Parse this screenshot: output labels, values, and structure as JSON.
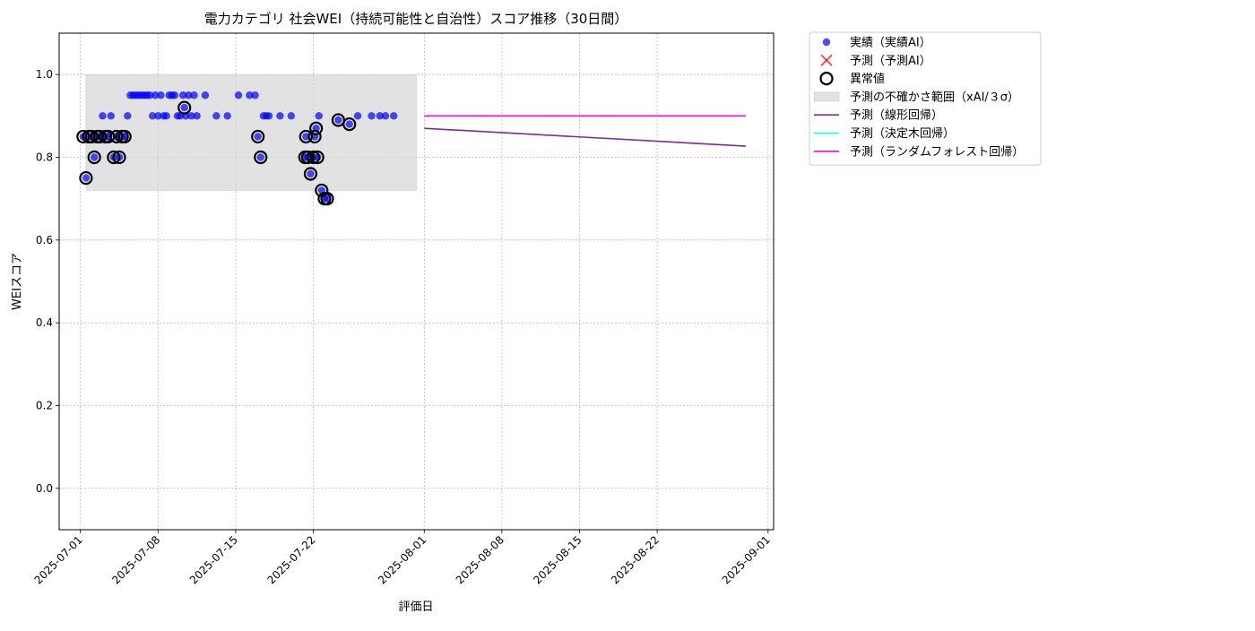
{
  "chart_data": {
    "type": "scatter",
    "title": "電力カテゴリ 社会WEI（持続可能性と自治性）スコア推移（30日間）",
    "xlabel": "評価日",
    "ylabel": "WEIスコア",
    "xlim": [
      "2025-06-29T02:00",
      "2025-09-01T12:00"
    ],
    "ylim": [
      -0.1,
      1.1
    ],
    "x_ticks": [
      "2025-07-01",
      "2025-07-08",
      "2025-07-15",
      "2025-07-22",
      "2025-08-01",
      "2025-08-08",
      "2025-08-15",
      "2025-08-22",
      "2025-09-01"
    ],
    "y_ticks": [
      "0.0",
      "0.2",
      "0.4",
      "0.6",
      "0.8",
      "1.0"
    ],
    "grid": true,
    "legend_position": "outside-right-top",
    "colors": {
      "actual": "#0000ff",
      "predicted_ai": "#ff0000",
      "anomaly": "#000000",
      "band": "#d3d3d3",
      "linear": "#7b2d8e",
      "tree": "#00ffff",
      "forest": "#ff00ff"
    },
    "legend": [
      {
        "key": "actual",
        "label": "実績（実績AI）",
        "marker": "dot"
      },
      {
        "key": "predicted_ai",
        "label": "予測（予測AI）",
        "marker": "x"
      },
      {
        "key": "anomaly",
        "label": "異常値",
        "marker": "ring"
      },
      {
        "key": "band",
        "label": "予測の不確かさ範囲（xAI/３σ）",
        "marker": "patch"
      },
      {
        "key": "linear",
        "label": "予測（線形回帰）",
        "marker": "line"
      },
      {
        "key": "tree",
        "label": "予測（決定木回帰）",
        "marker": "line"
      },
      {
        "key": "forest",
        "label": "予測（ランダムフォレスト回帰）",
        "marker": "line"
      }
    ],
    "band": {
      "x_start": "2025-07-01T12:00",
      "x_end": "2025-07-31T07:00",
      "y_low": 0.72,
      "y_high": 1.0
    },
    "actual_points": [
      [
        "2025-07-01T06:00",
        0.85
      ],
      [
        "2025-07-01T12:00",
        0.75
      ],
      [
        "2025-07-01T18:00",
        0.85
      ],
      [
        "2025-07-02T00:00",
        0.85
      ],
      [
        "2025-07-02T06:00",
        0.8
      ],
      [
        "2025-07-02T12:00",
        0.85
      ],
      [
        "2025-07-02T18:00",
        0.85
      ],
      [
        "2025-07-03T00:00",
        0.9
      ],
      [
        "2025-07-03T06:00",
        0.85
      ],
      [
        "2025-07-03T12:00",
        0.85
      ],
      [
        "2025-07-03T18:00",
        0.9
      ],
      [
        "2025-07-04T00:00",
        0.8
      ],
      [
        "2025-07-04T06:00",
        0.85
      ],
      [
        "2025-07-04T12:00",
        0.8
      ],
      [
        "2025-07-04T18:00",
        0.85
      ],
      [
        "2025-07-05T00:00",
        0.85
      ],
      [
        "2025-07-05T06:00",
        0.9
      ],
      [
        "2025-07-05T12:00",
        0.95
      ],
      [
        "2025-07-05T18:00",
        0.95
      ],
      [
        "2025-07-06T00:00",
        0.95
      ],
      [
        "2025-07-06T06:00",
        0.95
      ],
      [
        "2025-07-06T12:00",
        0.95
      ],
      [
        "2025-07-06T18:00",
        0.95
      ],
      [
        "2025-07-07T00:00",
        0.95
      ],
      [
        "2025-07-07T06:00",
        0.95
      ],
      [
        "2025-07-07T12:00",
        0.9
      ],
      [
        "2025-07-07T18:00",
        0.95
      ],
      [
        "2025-07-08T00:00",
        0.9
      ],
      [
        "2025-07-08T06:00",
        0.95
      ],
      [
        "2025-07-08T12:00",
        0.9
      ],
      [
        "2025-07-08T18:00",
        0.9
      ],
      [
        "2025-07-09T00:00",
        0.95
      ],
      [
        "2025-07-09T06:00",
        0.95
      ],
      [
        "2025-07-09T12:00",
        0.95
      ],
      [
        "2025-07-09T18:00",
        0.9
      ],
      [
        "2025-07-10T00:00",
        0.9
      ],
      [
        "2025-07-10T06:00",
        0.95
      ],
      [
        "2025-07-10T09:00",
        0.92
      ],
      [
        "2025-07-10T12:00",
        0.9
      ],
      [
        "2025-07-10T18:00",
        0.95
      ],
      [
        "2025-07-11T00:00",
        0.9
      ],
      [
        "2025-07-11T06:00",
        0.95
      ],
      [
        "2025-07-11T12:00",
        0.9
      ],
      [
        "2025-07-12T06:00",
        0.95
      ],
      [
        "2025-07-13T06:00",
        0.9
      ],
      [
        "2025-07-14T06:00",
        0.9
      ],
      [
        "2025-07-15T06:00",
        0.95
      ],
      [
        "2025-07-16T06:00",
        0.95
      ],
      [
        "2025-07-16T18:00",
        0.95
      ],
      [
        "2025-07-17T00:00",
        0.85
      ],
      [
        "2025-07-17T06:00",
        0.8
      ],
      [
        "2025-07-17T12:00",
        0.9
      ],
      [
        "2025-07-17T18:00",
        0.9
      ],
      [
        "2025-07-18T00:00",
        0.9
      ],
      [
        "2025-07-19T00:00",
        0.9
      ],
      [
        "2025-07-20T00:00",
        0.9
      ],
      [
        "2025-07-21T06:00",
        0.8
      ],
      [
        "2025-07-21T08:00",
        0.85
      ],
      [
        "2025-07-21T12:00",
        0.8
      ],
      [
        "2025-07-21T18:00",
        0.76
      ],
      [
        "2025-07-22T00:00",
        0.8
      ],
      [
        "2025-07-22T03:00",
        0.85
      ],
      [
        "2025-07-22T06:00",
        0.87
      ],
      [
        "2025-07-22T09:00",
        0.8
      ],
      [
        "2025-07-22T12:00",
        0.9
      ],
      [
        "2025-07-22T18:00",
        0.72
      ],
      [
        "2025-07-23T00:00",
        0.7
      ],
      [
        "2025-07-23T06:00",
        0.7
      ],
      [
        "2025-07-24T06:00",
        0.89
      ],
      [
        "2025-07-25T06:00",
        0.88
      ],
      [
        "2025-07-26T00:00",
        0.9
      ],
      [
        "2025-07-27T06:00",
        0.9
      ],
      [
        "2025-07-28T00:00",
        0.9
      ],
      [
        "2025-07-28T12:00",
        0.9
      ],
      [
        "2025-07-29T06:00",
        0.9
      ]
    ],
    "anomaly_points": [
      [
        "2025-07-01T06:00",
        0.85
      ],
      [
        "2025-07-01T12:00",
        0.75
      ],
      [
        "2025-07-01T18:00",
        0.85
      ],
      [
        "2025-07-02T00:00",
        0.85
      ],
      [
        "2025-07-02T06:00",
        0.8
      ],
      [
        "2025-07-02T12:00",
        0.85
      ],
      [
        "2025-07-02T18:00",
        0.85
      ],
      [
        "2025-07-03T06:00",
        0.85
      ],
      [
        "2025-07-03T12:00",
        0.85
      ],
      [
        "2025-07-04T00:00",
        0.8
      ],
      [
        "2025-07-04T06:00",
        0.85
      ],
      [
        "2025-07-04T12:00",
        0.8
      ],
      [
        "2025-07-04T18:00",
        0.85
      ],
      [
        "2025-07-05T00:00",
        0.85
      ],
      [
        "2025-07-10T09:00",
        0.92
      ],
      [
        "2025-07-17T00:00",
        0.85
      ],
      [
        "2025-07-17T06:00",
        0.8
      ],
      [
        "2025-07-21T06:00",
        0.8
      ],
      [
        "2025-07-21T08:00",
        0.85
      ],
      [
        "2025-07-21T12:00",
        0.8
      ],
      [
        "2025-07-21T18:00",
        0.76
      ],
      [
        "2025-07-22T00:00",
        0.8
      ],
      [
        "2025-07-22T03:00",
        0.85
      ],
      [
        "2025-07-22T06:00",
        0.87
      ],
      [
        "2025-07-22T09:00",
        0.8
      ],
      [
        "2025-07-22T18:00",
        0.72
      ],
      [
        "2025-07-23T00:00",
        0.7
      ],
      [
        "2025-07-23T06:00",
        0.7
      ],
      [
        "2025-07-24T06:00",
        0.89
      ],
      [
        "2025-07-25T06:00",
        0.88
      ]
    ],
    "series": [
      {
        "key": "linear",
        "x": [
          "2025-08-01T00:00",
          "2025-08-30T00:00"
        ],
        "y": [
          0.87,
          0.827
        ]
      },
      {
        "key": "forest",
        "x": [
          "2025-08-01T00:00",
          "2025-08-30T00:00"
        ],
        "y": [
          0.9,
          0.9
        ]
      }
    ]
  }
}
